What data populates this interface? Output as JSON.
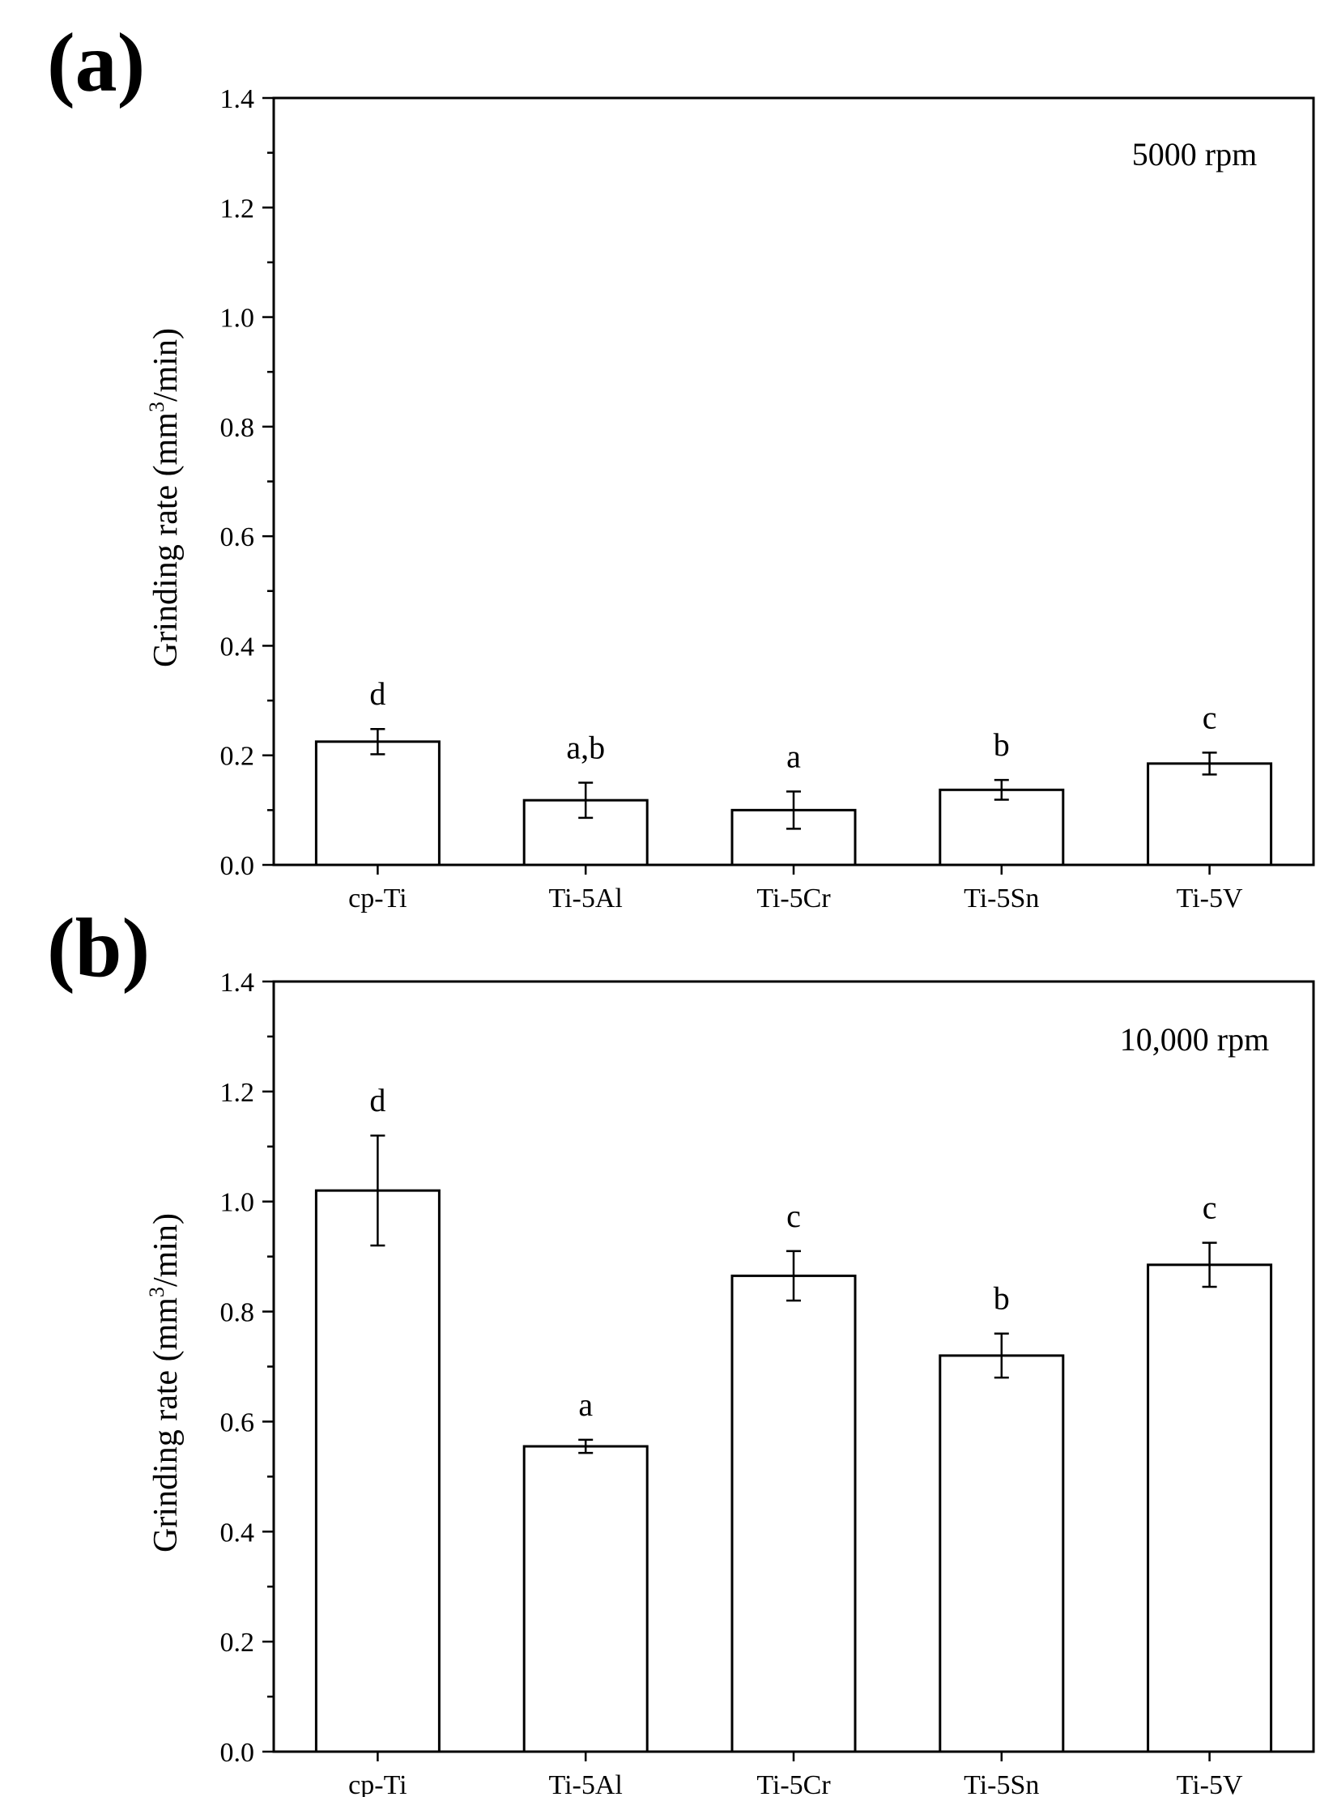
{
  "chart_data": [
    {
      "type": "bar",
      "panel": "(a)",
      "annotation": "5000 rpm",
      "ylabel": "Grinding rate (mm³/min)",
      "ylabel_parts": {
        "pre": "Grinding rate (mm",
        "sup": "3",
        "post": "/min)"
      },
      "xlabel": "",
      "ylim": [
        0,
        1.4
      ],
      "yticks": [
        "0.0",
        "0.2",
        "0.4",
        "0.6",
        "0.8",
        "1.0",
        "1.2",
        "1.4"
      ],
      "categories": [
        "cp-Ti",
        "Ti-5Al",
        "Ti-5Cr",
        "Ti-5Sn",
        "Ti-5V"
      ],
      "values": [
        0.225,
        0.118,
        0.1,
        0.137,
        0.185
      ],
      "errors": [
        0.023,
        0.032,
        0.034,
        0.018,
        0.02
      ],
      "significance": [
        "d",
        "a,b",
        "a",
        "b",
        "c"
      ]
    },
    {
      "type": "bar",
      "panel": "(b)",
      "annotation": "10,000 rpm",
      "ylabel": "Grinding rate (mm³/min)",
      "ylabel_parts": {
        "pre": "Grinding rate (mm",
        "sup": "3",
        "post": "/min)"
      },
      "xlabel": "",
      "ylim": [
        0,
        1.4
      ],
      "yticks": [
        "0.0",
        "0.2",
        "0.4",
        "0.6",
        "0.8",
        "1.0",
        "1.2",
        "1.4"
      ],
      "categories": [
        "cp-Ti",
        "Ti-5Al",
        "Ti-5Cr",
        "Ti-5Sn",
        "Ti-5V"
      ],
      "values": [
        1.02,
        0.555,
        0.865,
        0.72,
        0.885
      ],
      "errors": [
        0.1,
        0.012,
        0.045,
        0.04,
        0.04
      ],
      "significance": [
        "d",
        "a",
        "c",
        "b",
        "c"
      ]
    }
  ]
}
